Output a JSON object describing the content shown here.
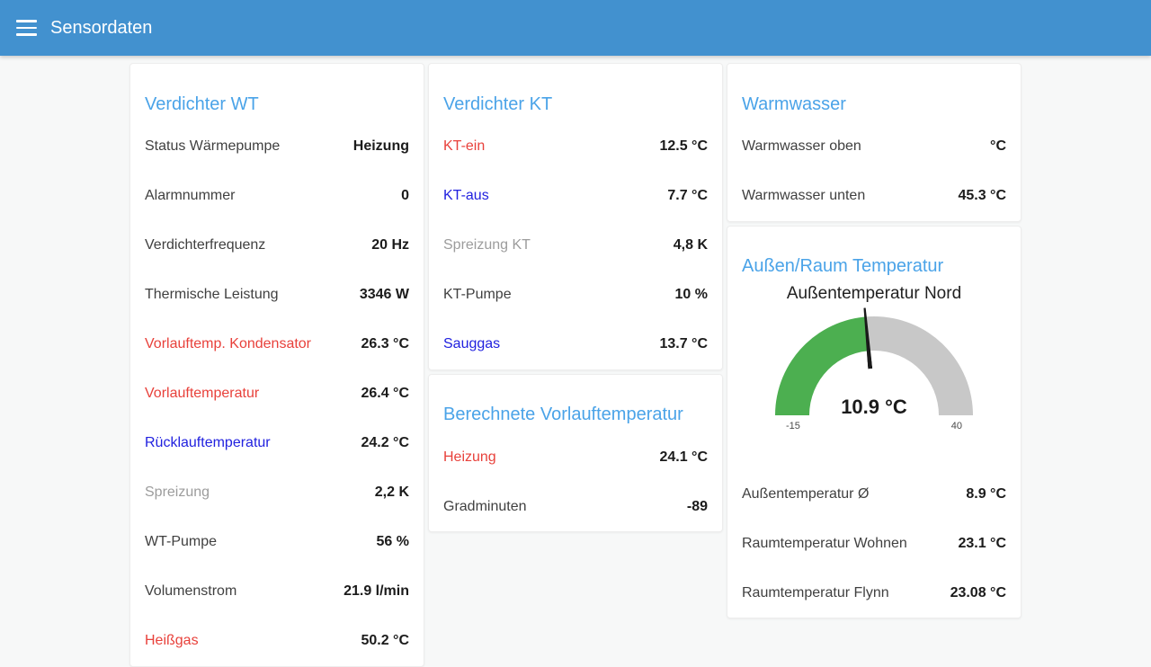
{
  "app_bar": {
    "title": "Sensordaten"
  },
  "theme": {
    "app_bar_background": "#4291cf",
    "page_background": "#f7f8f8",
    "card_title_color": "#4aa3e8",
    "red_label_color": "#e8413b",
    "blue_label_color": "#2121df",
    "gray_label_color": "#9c9c9c"
  },
  "columns": [
    {
      "cards": [
        {
          "title": "Verdichter WT",
          "rows": [
            {
              "label": "Status Wärmepumpe",
              "value": "Heizung",
              "label_color": "default"
            },
            {
              "label": "Alarmnummer",
              "value": "0",
              "label_color": "default"
            },
            {
              "label": "Verdichterfrequenz",
              "value": "20 Hz",
              "label_color": "default"
            },
            {
              "label": "Thermische Leistung",
              "value": "3346 W",
              "label_color": "default"
            },
            {
              "label": "Vorlauftemp. Kondensator",
              "value": "26.3 °C",
              "label_color": "red"
            },
            {
              "label": "Vorlauftemperatur",
              "value": "26.4 °C",
              "label_color": "red"
            },
            {
              "label": "Rücklauftemperatur",
              "value": "24.2 °C",
              "label_color": "blue"
            },
            {
              "label": "Spreizung",
              "value": "2,2 K",
              "label_color": "gray"
            },
            {
              "label": "WT-Pumpe",
              "value": "56 %",
              "label_color": "default"
            },
            {
              "label": "Volumenstrom",
              "value": "21.9 l/min",
              "label_color": "default"
            },
            {
              "label": "Heißgas",
              "value": "50.2 °C",
              "label_color": "red"
            }
          ]
        }
      ]
    },
    {
      "cards": [
        {
          "title": "Verdichter KT",
          "rows": [
            {
              "label": "KT-ein",
              "value": "12.5 °C",
              "label_color": "red"
            },
            {
              "label": "KT-aus",
              "value": "7.7 °C",
              "label_color": "blue"
            },
            {
              "label": "Spreizung KT",
              "value": "4,8 K",
              "label_color": "gray"
            },
            {
              "label": "KT-Pumpe",
              "value": "10 %",
              "label_color": "default"
            },
            {
              "label": "Sauggas",
              "value": "13.7 °C",
              "label_color": "blue"
            }
          ]
        },
        {
          "title": "Berechnete Vorlauftemperatur",
          "rows": [
            {
              "label": "Heizung",
              "value": "24.1 °C",
              "label_color": "red"
            },
            {
              "label": "Gradminuten",
              "value": "-89",
              "label_color": "default"
            }
          ]
        }
      ]
    },
    {
      "cards": [
        {
          "title": "Warmwasser",
          "rows": [
            {
              "label": "Warmwasser oben",
              "value": "°C",
              "label_color": "default"
            },
            {
              "label": "Warmwasser unten",
              "value": "45.3 °C",
              "label_color": "default"
            }
          ]
        },
        {
          "title": "Außen/Raum Temperatur",
          "gauge": {
            "title": "Außentemperatur Nord",
            "value": 10.9,
            "value_display": "10.9 °C",
            "min": -15,
            "max": 40,
            "min_label": "-15",
            "max_label": "40",
            "green_color": "#4caf50",
            "gray_color": "#c8c8c8",
            "needle_color": "#1a1a1a"
          },
          "rows": [
            {
              "label": "Außentemperatur Ø",
              "value": "8.9 °C",
              "label_color": "default"
            },
            {
              "label": "Raumtemperatur Wohnen",
              "value": "23.1 °C",
              "label_color": "default"
            },
            {
              "label": "Raumtemperatur Flynn",
              "value": "23.08 °C",
              "label_color": "default"
            }
          ]
        }
      ]
    }
  ]
}
